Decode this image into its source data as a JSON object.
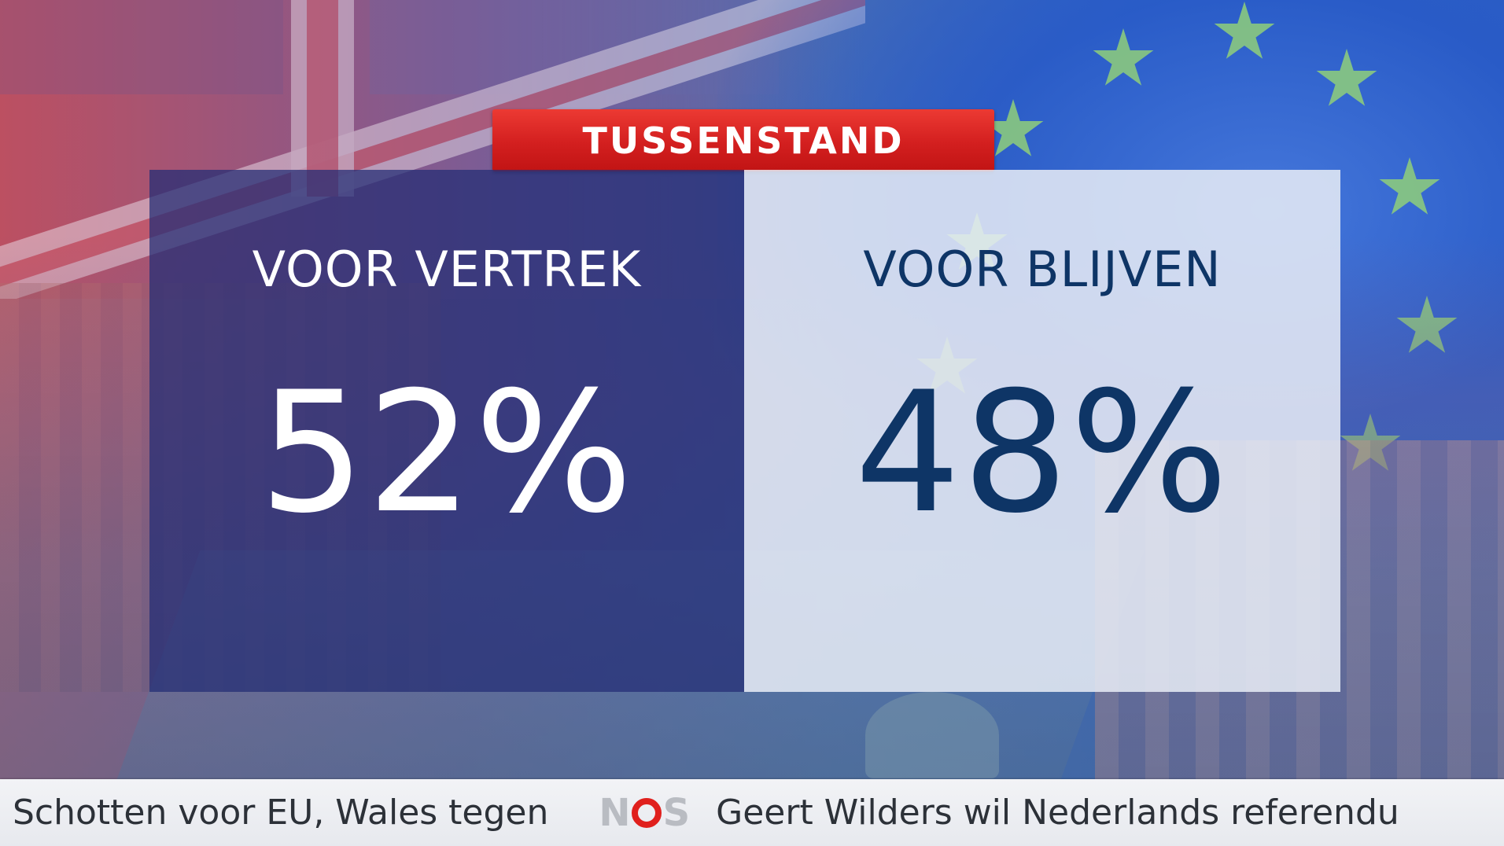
{
  "header": {
    "title": "TUSSENSTAND"
  },
  "results": {
    "leave": {
      "label": "VOOR VERTREK",
      "percent": "52%",
      "value": 52
    },
    "remain": {
      "label": "VOOR BLIJVEN",
      "percent": "48%",
      "value": 48
    }
  },
  "ticker": {
    "item_1": "Schotten voor EU, Wales tegen",
    "logo": "NOS",
    "item_2": "Geert Wilders wil Nederlands referendu"
  },
  "colors": {
    "header_red": "#d31f1f",
    "leave_panel": "#242e76",
    "remain_panel": "#e8ecf6",
    "remain_text": "#0e3566",
    "ticker_bg": "#eceef2",
    "logo_red": "#e0201d"
  }
}
